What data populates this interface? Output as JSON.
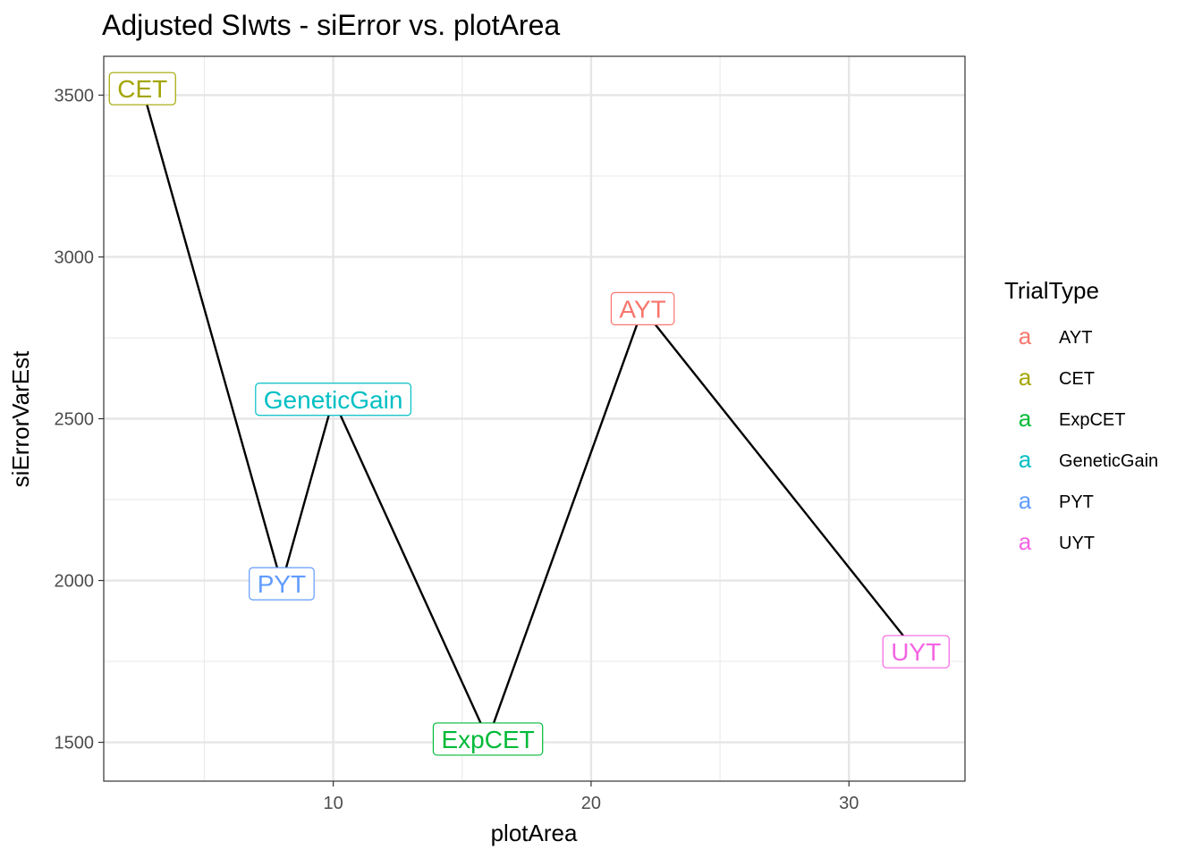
{
  "chart_data": {
    "type": "line",
    "title": "Adjusted SIwts - siError vs. plotArea",
    "xlabel": "plotArea",
    "ylabel": "siErrorVarEst",
    "xlim": [
      1.1,
      34.5
    ],
    "ylim": [
      1380,
      3620
    ],
    "x_ticks": [
      10,
      20,
      30
    ],
    "y_ticks": [
      1500,
      2000,
      2500,
      3000,
      3500
    ],
    "grid": true,
    "legend": {
      "title": "TrialType",
      "position": "right",
      "key_glyph": "a"
    },
    "series": [
      {
        "points": [
          {
            "x": 2.6,
            "y": 3520,
            "label": "CET",
            "color": "#A3A500"
          },
          {
            "x": 8.0,
            "y": 1990,
            "label": "PYT",
            "color": "#619CFF"
          },
          {
            "x": 10.0,
            "y": 2560,
            "label": "GeneticGain",
            "color": "#00BFC4"
          },
          {
            "x": 16.0,
            "y": 1510,
            "label": "ExpCET",
            "color": "#00BA38"
          },
          {
            "x": 22.0,
            "y": 2840,
            "label": "AYT",
            "color": "#F8766D"
          },
          {
            "x": 32.6,
            "y": 1780,
            "label": "UYT",
            "color": "#F564E3"
          }
        ],
        "line_color": "#000000"
      }
    ],
    "legend_entries": [
      {
        "label": "AYT",
        "color": "#F8766D"
      },
      {
        "label": "CET",
        "color": "#A3A500"
      },
      {
        "label": "ExpCET",
        "color": "#00BA38"
      },
      {
        "label": "GeneticGain",
        "color": "#00BFC4"
      },
      {
        "label": "PYT",
        "color": "#619CFF"
      },
      {
        "label": "UYT",
        "color": "#F564E3"
      }
    ]
  }
}
